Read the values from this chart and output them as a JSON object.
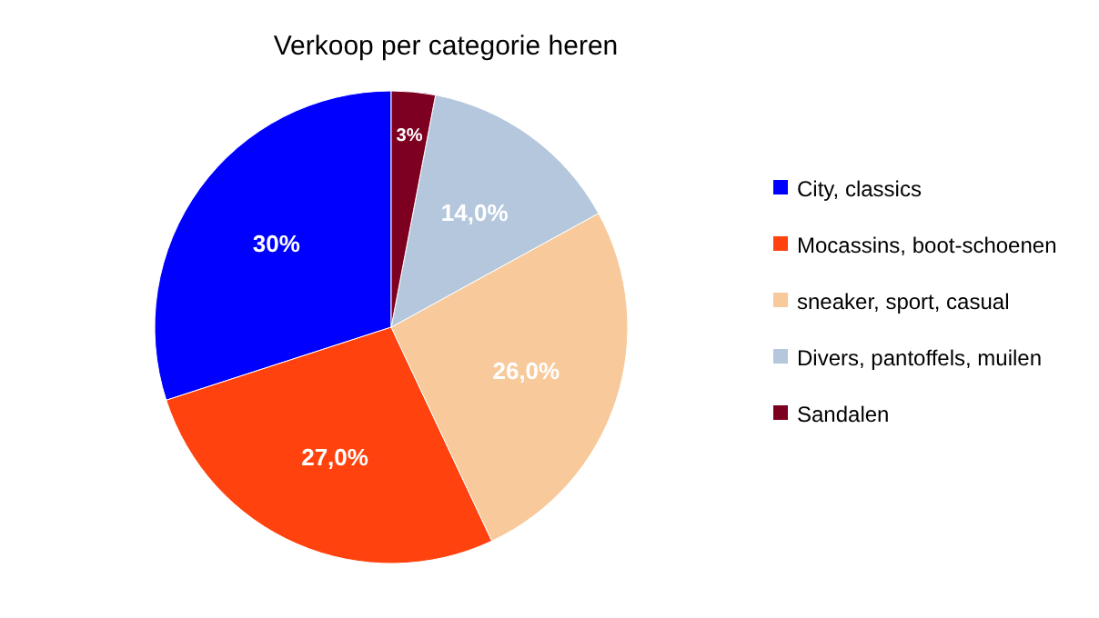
{
  "chart_data": {
    "type": "pie",
    "title": "Verkoop per categorie heren",
    "categories": [
      "City, classics",
      "Mocassins, boot-schoenen",
      "sneaker, sport, casual",
      "Divers, pantoffels, muilen",
      "Sandalen"
    ],
    "values": [
      30,
      27,
      26,
      14,
      3
    ],
    "value_labels": [
      "30%",
      "27,0%",
      "26,0%",
      "14,0%",
      "3%"
    ],
    "colors": [
      "#0000ff",
      "#ff420e",
      "#f8c99a",
      "#b4c7dc",
      "#7e0021"
    ],
    "legend": "right"
  }
}
